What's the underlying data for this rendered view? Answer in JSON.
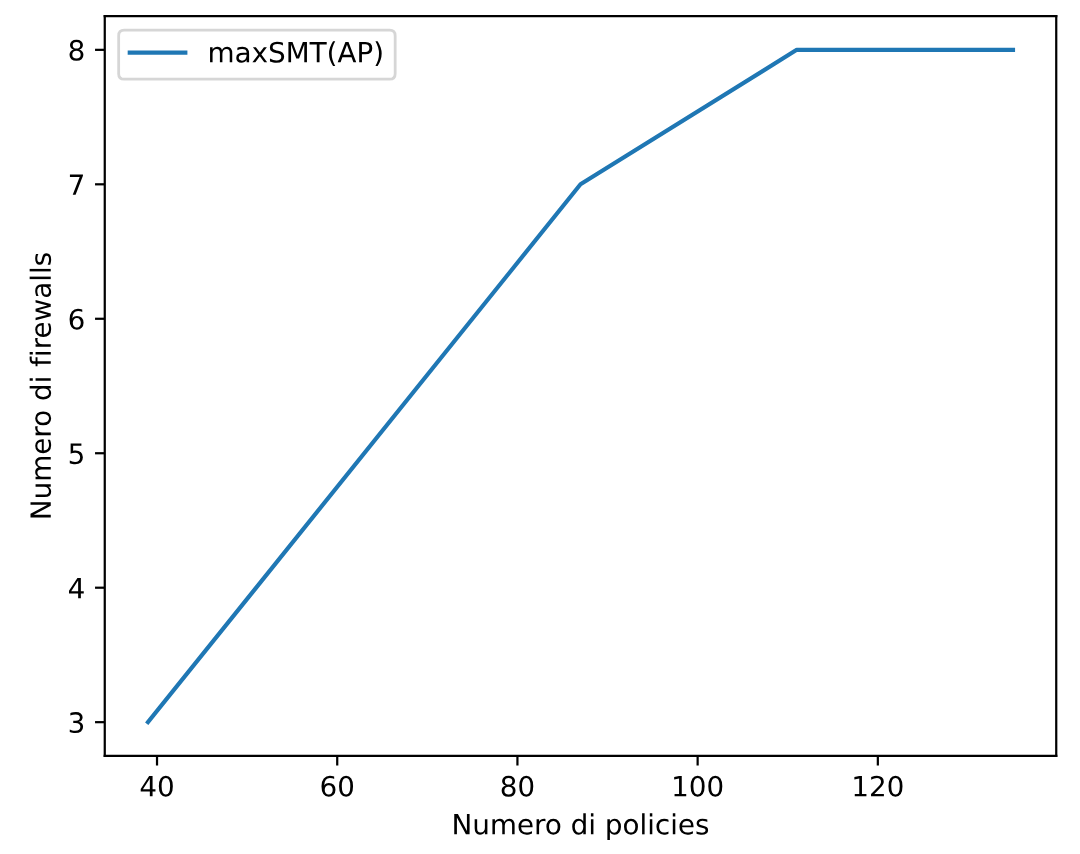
{
  "chart_data": {
    "type": "line",
    "xlabel": "Numero di policies",
    "ylabel": "Numero di firewalls",
    "series": [
      {
        "name": "maxSMT(AP)",
        "color": "#1f77b4",
        "x": [
          39,
          87,
          111,
          135
        ],
        "values": [
          3,
          7,
          8,
          8
        ]
      }
    ],
    "xlim": [
      34.2,
      139.8
    ],
    "xticks": [
      40,
      60,
      80,
      100,
      120
    ],
    "ylim": [
      2.75,
      8.25
    ],
    "yticks": [
      3,
      4,
      5,
      6,
      7,
      8
    ],
    "grid": false,
    "legend": "top left",
    "marker": "none",
    "line_style": "solid"
  }
}
